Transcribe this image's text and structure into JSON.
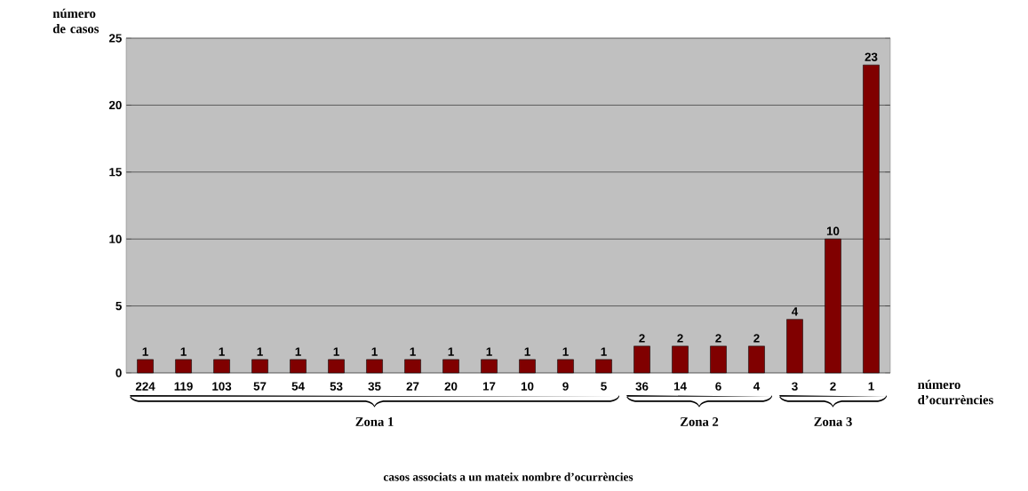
{
  "chart_data": {
    "type": "bar",
    "xlabel": "número d’ocurrències",
    "ylabel": "número de casos",
    "categories": [
      "224",
      "119",
      "103",
      "57",
      "54",
      "53",
      "35",
      "27",
      "20",
      "17",
      "10",
      "9",
      "5",
      "36",
      "14",
      "6",
      "4",
      "3",
      "2",
      "1"
    ],
    "values": [
      1,
      1,
      1,
      1,
      1,
      1,
      1,
      1,
      1,
      1,
      1,
      1,
      1,
      2,
      2,
      2,
      2,
      4,
      10,
      23
    ],
    "color": "#800000",
    "ylim": [
      0,
      25
    ],
    "yticks": [
      0,
      5,
      10,
      15,
      20,
      25
    ],
    "grid": "y",
    "data_labels": true,
    "annotations": [
      "Zona 1",
      "Zona 2",
      "Zona 3",
      "casos  associats a un mateix nombre d’ocurrències"
    ]
  }
}
